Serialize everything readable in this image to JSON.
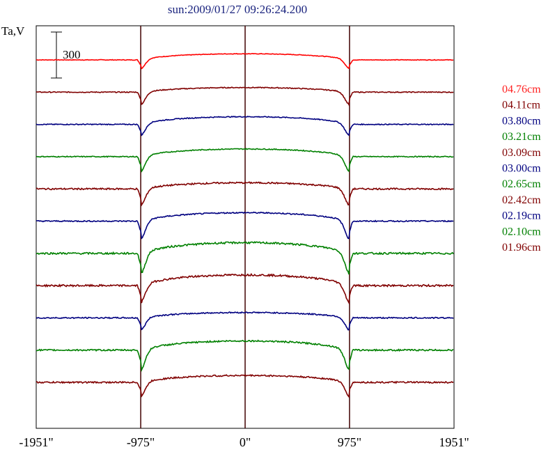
{
  "chart_data": {
    "type": "line",
    "title": "sun:2009/01/27 09:26:24.200",
    "ylabel": "Ta,V",
    "scale_bar_label": "300",
    "scale_bar_value": 300,
    "x_tick_labels": [
      "-1951\"",
      "-975\"",
      "0\"",
      "975\"",
      "1951\""
    ],
    "x_ticks": [
      -1951,
      -975,
      0,
      975,
      1951
    ],
    "xlim": [
      -1951,
      1951
    ],
    "vertical_lines": [
      -975,
      0,
      975
    ],
    "series": [
      {
        "name": "04.76cm",
        "color": "#ff0000",
        "quiet_level": 0,
        "disk_center": 40,
        "limb_dip": -55,
        "noise": 2
      },
      {
        "name": "04.11cm",
        "color": "#800000",
        "quiet_level": 0,
        "disk_center": 30,
        "limb_dip": -75,
        "noise": 3
      },
      {
        "name": "03.80cm",
        "color": "#000080",
        "quiet_level": 0,
        "disk_center": 50,
        "limb_dip": -70,
        "noise": 3
      },
      {
        "name": "03.21cm",
        "color": "#008000",
        "quiet_level": 0,
        "disk_center": 50,
        "limb_dip": -90,
        "noise": 3
      },
      {
        "name": "03.09cm",
        "color": "#800000",
        "quiet_level": 0,
        "disk_center": 40,
        "limb_dip": -100,
        "noise": 5
      },
      {
        "name": "03.00cm",
        "color": "#000080",
        "quiet_level": 0,
        "disk_center": 55,
        "limb_dip": -110,
        "noise": 4
      },
      {
        "name": "02.65cm",
        "color": "#008000",
        "quiet_level": 0,
        "disk_center": 70,
        "limb_dip": -125,
        "noise": 6
      },
      {
        "name": "02.42cm",
        "color": "#800000",
        "quiet_level": 0,
        "disk_center": 70,
        "limb_dip": -105,
        "noise": 6
      },
      {
        "name": "02.19cm",
        "color": "#000080",
        "quiet_level": 0,
        "disk_center": 35,
        "limb_dip": -75,
        "noise": 4
      },
      {
        "name": "02.10cm",
        "color": "#008000",
        "quiet_level": 0,
        "disk_center": 60,
        "limb_dip": -120,
        "noise": 5
      },
      {
        "name": "01.96cm",
        "color": "#800000",
        "quiet_level": 0,
        "disk_center": 45,
        "limb_dip": -85,
        "noise": 5
      }
    ],
    "grid": false,
    "legend_placement": "right"
  }
}
